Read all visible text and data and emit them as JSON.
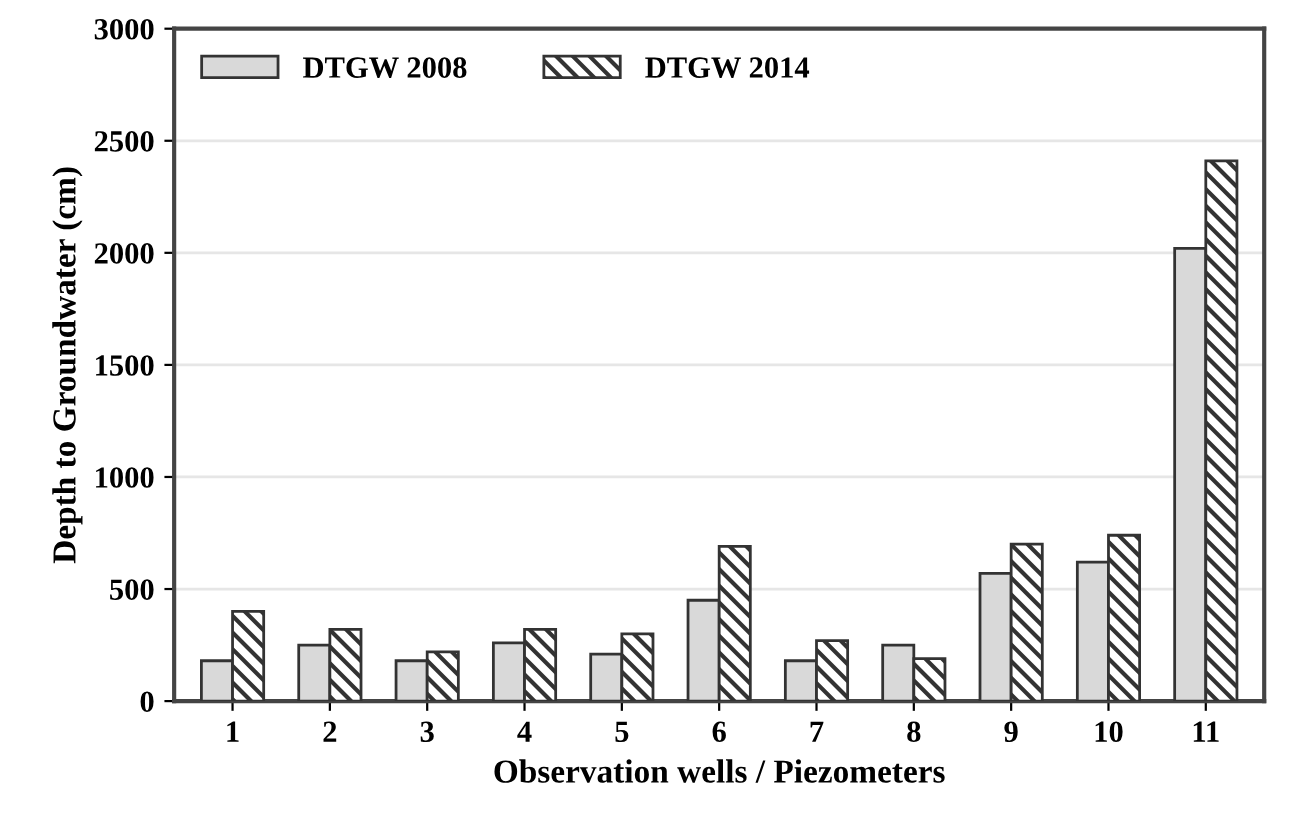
{
  "chart_data": {
    "type": "bar",
    "xlabel": "Observation wells / Piezometers",
    "ylabel": "Depth to Groundwater (cm)",
    "categories": [
      "1",
      "2",
      "3",
      "4",
      "5",
      "6",
      "7",
      "8",
      "9",
      "10",
      "11"
    ],
    "series": [
      {
        "name": "DTGW 2008",
        "color": "#d9d9d9",
        "values": [
          180,
          250,
          180,
          260,
          210,
          450,
          180,
          250,
          570,
          620,
          2020
        ]
      },
      {
        "name": "DTGW 2014",
        "color": "#333333",
        "values": [
          400,
          320,
          220,
          320,
          300,
          690,
          270,
          190,
          700,
          740,
          2410
        ]
      }
    ],
    "ylim": [
      0,
      3000
    ],
    "yticks": [
      0,
      500,
      1000,
      1500,
      2000,
      2500,
      3000
    ],
    "grid": "y",
    "legend": "top left"
  }
}
